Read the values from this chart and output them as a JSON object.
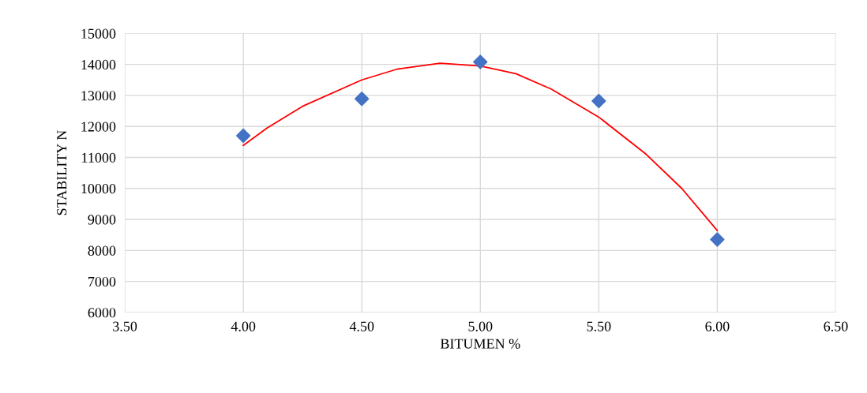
{
  "chart_data": {
    "type": "scatter",
    "xlabel": "BITUMEN %",
    "ylabel": "STABILITY N",
    "series": [
      {
        "color": "#4472c4",
        "marker": "diamond",
        "x": [
          4.0,
          4.5,
          5.0,
          5.5,
          6.0
        ],
        "values": [
          11700,
          12890,
          14080,
          12820,
          8350
        ]
      },
      {
        "type": "line",
        "color": "#ff0000",
        "marker": "none",
        "line_style": "solid",
        "x": [
          4.0,
          4.1,
          4.25,
          4.5,
          4.65,
          4.83,
          5.0,
          5.15,
          5.3,
          5.5,
          5.7,
          5.85,
          6.0
        ],
        "values": [
          11390,
          11950,
          12650,
          13500,
          13850,
          14040,
          13950,
          13700,
          13200,
          12300,
          11100,
          10000,
          8640
        ]
      }
    ],
    "xlim": [
      3.5,
      6.5
    ],
    "ylim": [
      6000,
      15000
    ],
    "xticks": [
      {
        "value": 3.5,
        "label": "3.50"
      },
      {
        "value": 4.0,
        "label": "4.00"
      },
      {
        "value": 4.5,
        "label": "4.50"
      },
      {
        "value": 5.0,
        "label": "5.00"
      },
      {
        "value": 5.5,
        "label": "5.50"
      },
      {
        "value": 6.0,
        "label": "6.00"
      },
      {
        "value": 6.5,
        "label": "6.50"
      }
    ],
    "yticks": [
      6000,
      7000,
      8000,
      9000,
      10000,
      11000,
      12000,
      13000,
      14000,
      15000
    ],
    "grid": true
  }
}
